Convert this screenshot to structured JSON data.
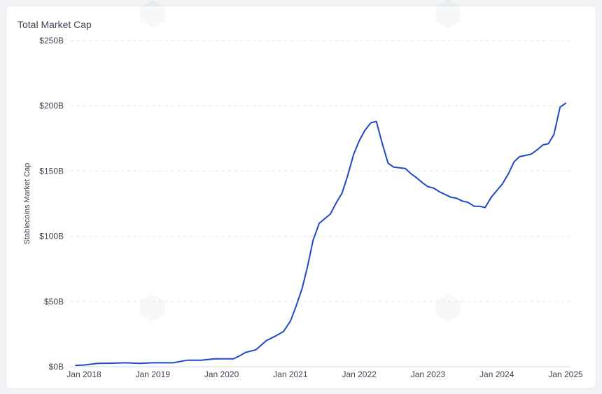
{
  "chart_data": {
    "type": "line",
    "title": "Total Market Cap",
    "ylabel": "Stablecoins Market Cap",
    "xlabel": "",
    "ylim": [
      0,
      250
    ],
    "yticks": [
      0,
      50,
      100,
      150,
      200,
      250
    ],
    "ytick_labels": [
      "$0B",
      "$50B",
      "$100B",
      "$150B",
      "$200B",
      "$250B"
    ],
    "xlim": [
      2017.97,
      2025.0
    ],
    "xticks": [
      2018,
      2019,
      2020,
      2021,
      2022,
      2023,
      2024,
      2025
    ],
    "xtick_labels": [
      "Jan 2018",
      "Jan 2019",
      "Jan 2020",
      "Jan 2021",
      "Jan 2022",
      "Jan 2023",
      "Jan 2024",
      "Jan 2025"
    ],
    "grid": "horizontal-dashed",
    "legend": "none",
    "series": [
      {
        "color": "#2347c8",
        "x": [
          2017.88,
          2018.0,
          2018.2,
          2018.4,
          2018.6,
          2018.8,
          2019.0,
          2019.3,
          2019.5,
          2019.7,
          2019.9,
          2020.17,
          2020.25,
          2020.35,
          2020.5,
          2020.65,
          2020.8,
          2020.9,
          2021.0,
          2021.08,
          2021.17,
          2021.25,
          2021.33,
          2021.42,
          2021.58,
          2021.67,
          2021.75,
          2021.83,
          2021.92,
          2022.0,
          2022.08,
          2022.17,
          2022.25,
          2022.33,
          2022.42,
          2022.5,
          2022.67,
          2022.75,
          2022.83,
          2022.92,
          2023.0,
          2023.08,
          2023.17,
          2023.25,
          2023.33,
          2023.42,
          2023.5,
          2023.58,
          2023.67,
          2023.75,
          2023.83,
          2023.92,
          2024.0,
          2024.08,
          2024.17,
          2024.25,
          2024.33,
          2024.42,
          2024.5,
          2024.58,
          2024.67,
          2024.75,
          2024.83,
          2024.92,
          2025.0
        ],
        "y": [
          1,
          1.3,
          2.5,
          2.7,
          3,
          2.5,
          3,
          3,
          5,
          5,
          6,
          6,
          8,
          11,
          13,
          20,
          24,
          27,
          35,
          46,
          60,
          77,
          97,
          110,
          117,
          126,
          133,
          146,
          163,
          173,
          181,
          187,
          188,
          172,
          156,
          153,
          152,
          148,
          145,
          141,
          138,
          137,
          134,
          132,
          130,
          129,
          127,
          126,
          123,
          123,
          122,
          130,
          135,
          140,
          148,
          157,
          161,
          162,
          163,
          166,
          170,
          171,
          178,
          199,
          202
        ]
      }
    ]
  }
}
